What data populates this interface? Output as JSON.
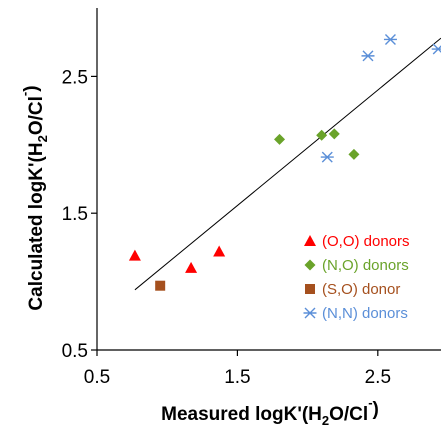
{
  "chart_data": {
    "type": "scatter",
    "xlabel": {
      "main": "Measured logK'(H",
      "sub": "2",
      "mid": "O/Cl",
      "sup": "-",
      "end": ")"
    },
    "ylabel": {
      "main": "Calculated logK'(H",
      "sub": "2",
      "mid": "O/Cl",
      "sup": "-",
      "end": ")"
    },
    "xlim": [
      0.5,
      2.95
    ],
    "ylim": [
      0.5,
      3.0
    ],
    "xticks": [
      "0.5",
      "1.5",
      "2.5"
    ],
    "yticks": [
      "0.5",
      "1.5",
      "2.5"
    ],
    "grid": false,
    "legend_position": "right",
    "series": [
      {
        "name": "(O,O) donors",
        "marker": "triangle",
        "color": "#ff0000",
        "points": [
          [
            0.77,
            1.19
          ],
          [
            1.17,
            1.1
          ],
          [
            1.37,
            1.22
          ]
        ]
      },
      {
        "name": "(N,O) donors",
        "marker": "diamond",
        "color": "#6aa32a",
        "points": [
          [
            1.8,
            2.04
          ],
          [
            2.1,
            2.07
          ],
          [
            2.19,
            2.08
          ],
          [
            2.33,
            1.93
          ]
        ]
      },
      {
        "name": "(S,O) donor",
        "marker": "square",
        "color": "#a5501e",
        "points": [
          [
            0.95,
            0.97
          ]
        ]
      },
      {
        "name": "(N,N) donors",
        "marker": "asterisk",
        "color": "#5b8fd8",
        "points": [
          [
            2.14,
            1.91
          ],
          [
            2.43,
            2.65
          ],
          [
            2.59,
            2.77
          ],
          [
            2.93,
            2.7
          ]
        ]
      }
    ],
    "trendline": {
      "color": "#000000",
      "from": [
        0.77,
        0.94
      ],
      "to": [
        2.95,
        2.78
      ]
    }
  }
}
